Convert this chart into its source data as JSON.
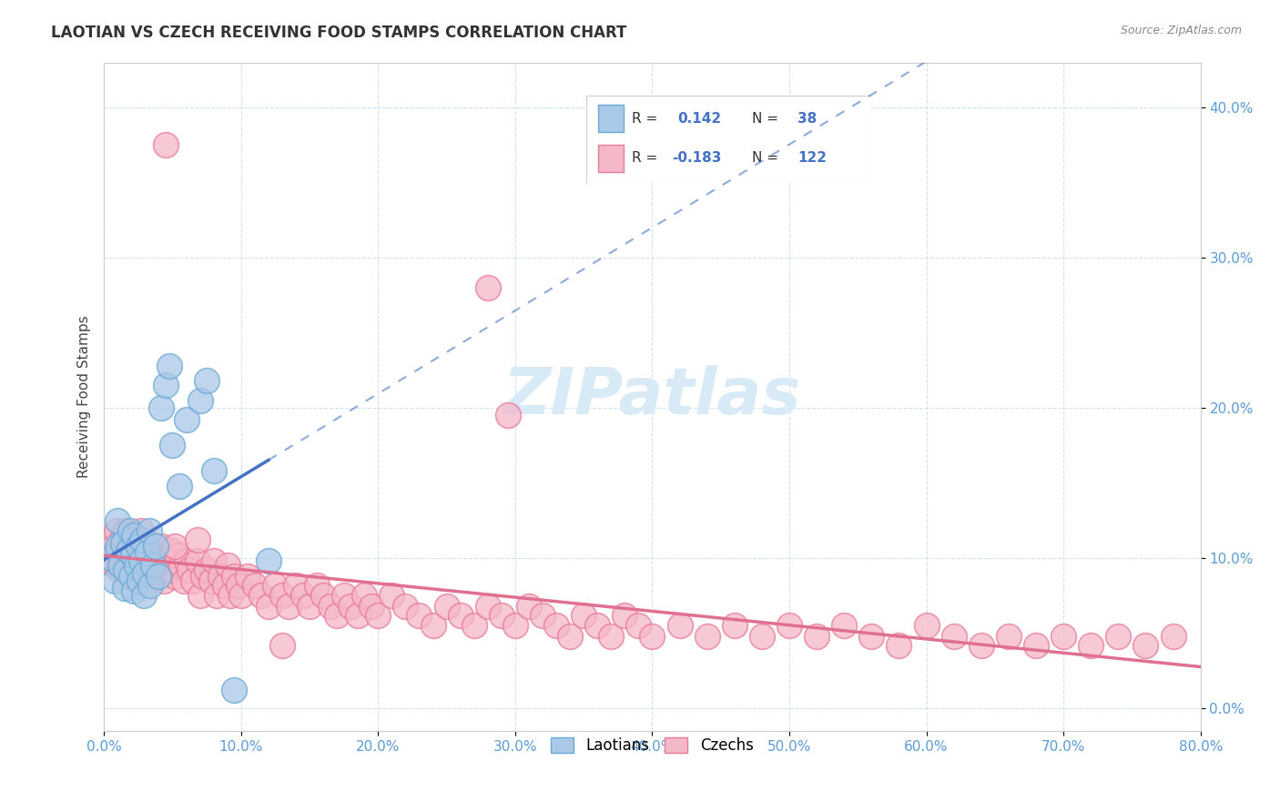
{
  "title": "LAOTIAN VS CZECH RECEIVING FOOD STAMPS CORRELATION CHART",
  "source": "Source: ZipAtlas.com",
  "xlim": [
    0.0,
    0.8
  ],
  "ylim": [
    -0.015,
    0.43
  ],
  "yticks": [
    0.0,
    0.1,
    0.2,
    0.3,
    0.4
  ],
  "xticks": [
    0.0,
    0.1,
    0.2,
    0.3,
    0.4,
    0.5,
    0.6,
    0.7,
    0.8
  ],
  "laotian_fill_color": "#aac8e8",
  "laotian_edge_color": "#6aaad4",
  "czech_fill_color": "#f5b8c8",
  "czech_edge_color": "#e87a9a",
  "trendline_color_laotian": "#4472c4",
  "trendline_color_czech": "#e07090",
  "watermark_color": "#d8eaf5",
  "legend_R_laotian": "0.142",
  "legend_N_laotian": "38",
  "legend_R_czech": "-0.183",
  "legend_N_czech": "122",
  "laotian_x": [
    0.005,
    0.008,
    0.01,
    0.01,
    0.012,
    0.014,
    0.015,
    0.016,
    0.018,
    0.019,
    0.02,
    0.021,
    0.022,
    0.022,
    0.024,
    0.025,
    0.026,
    0.027,
    0.028,
    0.029,
    0.03,
    0.032,
    0.033,
    0.034,
    0.036,
    0.038,
    0.04,
    0.042,
    0.045,
    0.048,
    0.05,
    0.055,
    0.06,
    0.07,
    0.075,
    0.08,
    0.095,
    0.12
  ],
  "laotian_y": [
    0.1,
    0.085,
    0.108,
    0.125,
    0.095,
    0.11,
    0.08,
    0.092,
    0.105,
    0.118,
    0.088,
    0.102,
    0.115,
    0.078,
    0.095,
    0.108,
    0.085,
    0.098,
    0.112,
    0.075,
    0.09,
    0.104,
    0.118,
    0.082,
    0.095,
    0.108,
    0.088,
    0.2,
    0.215,
    0.228,
    0.175,
    0.148,
    0.192,
    0.205,
    0.218,
    0.158,
    0.012,
    0.098
  ],
  "czech_x": [
    0.005,
    0.006,
    0.007,
    0.008,
    0.009,
    0.01,
    0.011,
    0.012,
    0.013,
    0.014,
    0.015,
    0.016,
    0.017,
    0.018,
    0.019,
    0.02,
    0.021,
    0.022,
    0.023,
    0.024,
    0.025,
    0.026,
    0.027,
    0.028,
    0.029,
    0.03,
    0.032,
    0.034,
    0.036,
    0.038,
    0.04,
    0.042,
    0.044,
    0.046,
    0.048,
    0.05,
    0.052,
    0.054,
    0.056,
    0.058,
    0.06,
    0.062,
    0.065,
    0.068,
    0.07,
    0.072,
    0.075,
    0.078,
    0.08,
    0.082,
    0.085,
    0.088,
    0.09,
    0.092,
    0.095,
    0.098,
    0.1,
    0.105,
    0.11,
    0.115,
    0.12,
    0.125,
    0.13,
    0.135,
    0.14,
    0.145,
    0.15,
    0.155,
    0.16,
    0.165,
    0.17,
    0.175,
    0.18,
    0.185,
    0.19,
    0.195,
    0.2,
    0.21,
    0.22,
    0.23,
    0.24,
    0.25,
    0.26,
    0.27,
    0.28,
    0.29,
    0.3,
    0.31,
    0.32,
    0.33,
    0.34,
    0.35,
    0.36,
    0.37,
    0.38,
    0.39,
    0.4,
    0.42,
    0.44,
    0.46,
    0.48,
    0.5,
    0.52,
    0.54,
    0.56,
    0.58,
    0.6,
    0.62,
    0.64,
    0.66,
    0.68,
    0.7,
    0.72,
    0.74,
    0.76,
    0.78,
    0.13,
    0.28,
    0.295,
    0.045,
    0.052,
    0.068
  ],
  "czech_y": [
    0.112,
    0.098,
    0.108,
    0.095,
    0.118,
    0.105,
    0.092,
    0.11,
    0.098,
    0.115,
    0.102,
    0.118,
    0.092,
    0.108,
    0.095,
    0.112,
    0.098,
    0.115,
    0.102,
    0.088,
    0.105,
    0.092,
    0.118,
    0.095,
    0.108,
    0.102,
    0.095,
    0.11,
    0.088,
    0.102,
    0.095,
    0.108,
    0.085,
    0.098,
    0.092,
    0.105,
    0.088,
    0.102,
    0.095,
    0.085,
    0.098,
    0.092,
    0.085,
    0.098,
    0.075,
    0.088,
    0.092,
    0.085,
    0.098,
    0.075,
    0.088,
    0.082,
    0.095,
    0.075,
    0.088,
    0.082,
    0.075,
    0.088,
    0.082,
    0.075,
    0.068,
    0.082,
    0.075,
    0.068,
    0.082,
    0.075,
    0.068,
    0.082,
    0.075,
    0.068,
    0.062,
    0.075,
    0.068,
    0.062,
    0.075,
    0.068,
    0.062,
    0.075,
    0.068,
    0.062,
    0.055,
    0.068,
    0.062,
    0.055,
    0.068,
    0.062,
    0.055,
    0.068,
    0.062,
    0.055,
    0.048,
    0.062,
    0.055,
    0.048,
    0.062,
    0.055,
    0.048,
    0.055,
    0.048,
    0.055,
    0.048,
    0.055,
    0.048,
    0.055,
    0.048,
    0.042,
    0.055,
    0.048,
    0.042,
    0.048,
    0.042,
    0.048,
    0.042,
    0.048,
    0.042,
    0.048,
    0.042,
    0.28,
    0.195,
    0.375,
    0.108,
    0.112
  ]
}
